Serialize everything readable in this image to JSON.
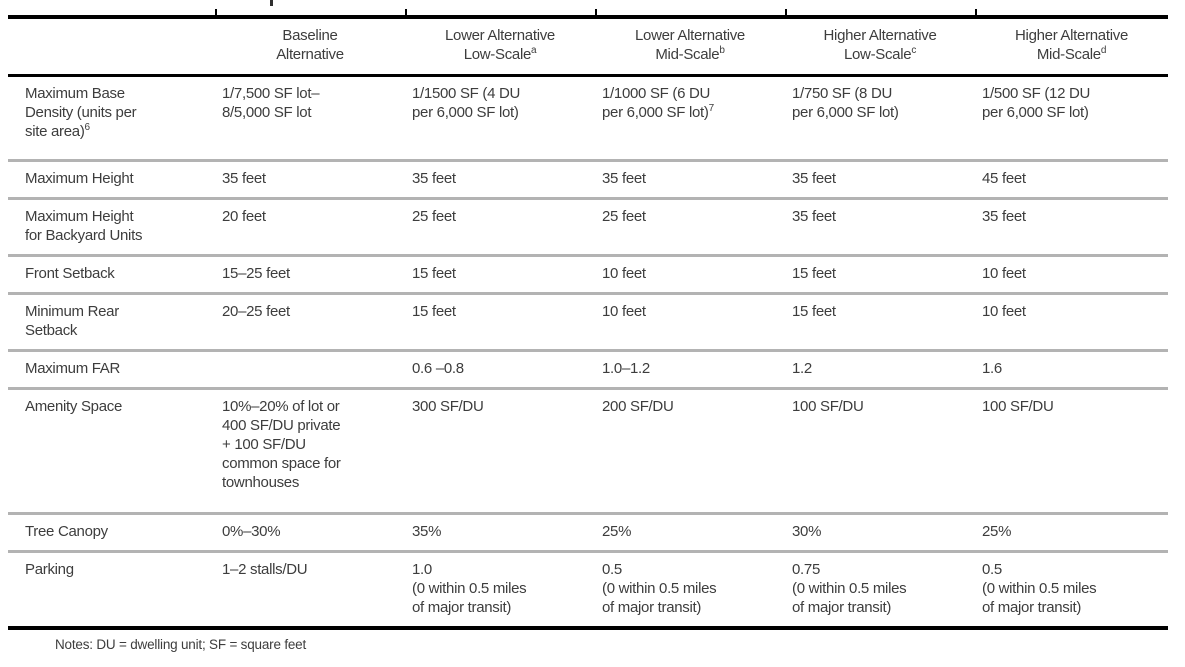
{
  "colors": {
    "background": "#ffffff",
    "text": "#3d3d3d",
    "rule_black": "#000000",
    "rule_gray": "#b3b3b3"
  },
  "table": {
    "columns": [
      {
        "lines": [],
        "sup": ""
      },
      {
        "lines": [
          "Baseline",
          "Alternative"
        ],
        "sup": ""
      },
      {
        "lines": [
          "Lower Alternative",
          "Low-Scale"
        ],
        "sup": "a"
      },
      {
        "lines": [
          "Lower Alternative",
          "Mid-Scale"
        ],
        "sup": "b"
      },
      {
        "lines": [
          "Higher Alternative",
          "Low-Scale"
        ],
        "sup": "c"
      },
      {
        "lines": [
          "Higher Alternative",
          "Mid-Scale"
        ],
        "sup": "d"
      }
    ],
    "rows": [
      {
        "label": {
          "lines": [
            "Maximum Base",
            "Density (units per",
            "site area)"
          ],
          "sup": "6"
        },
        "cells": [
          {
            "lines": [
              "1/7,500 SF lot–",
              "8/5,000 SF lot"
            ]
          },
          {
            "lines": [
              "1/1500 SF (4 DU",
              "per 6,000 SF lot)"
            ]
          },
          {
            "lines": [
              "1/1000 SF (6 DU",
              "per 6,000 SF lot)"
            ],
            "sup": "7"
          },
          {
            "lines": [
              "1/750 SF (8 DU",
              "per 6,000 SF lot)"
            ]
          },
          {
            "lines": [
              "1/500 SF (12 DU",
              "per 6,000 SF lot)"
            ]
          }
        ]
      },
      {
        "label": {
          "lines": [
            "Maximum Height"
          ]
        },
        "cells": [
          {
            "lines": [
              "35 feet"
            ]
          },
          {
            "lines": [
              "35 feet"
            ]
          },
          {
            "lines": [
              "35 feet"
            ]
          },
          {
            "lines": [
              "35 feet"
            ]
          },
          {
            "lines": [
              "45 feet"
            ]
          }
        ]
      },
      {
        "label": {
          "lines": [
            "Maximum Height",
            "for Backyard Units"
          ]
        },
        "cells": [
          {
            "lines": [
              "20 feet"
            ]
          },
          {
            "lines": [
              "25 feet"
            ]
          },
          {
            "lines": [
              "25 feet"
            ]
          },
          {
            "lines": [
              "35 feet"
            ]
          },
          {
            "lines": [
              "35 feet"
            ]
          }
        ]
      },
      {
        "label": {
          "lines": [
            "Front Setback"
          ]
        },
        "cells": [
          {
            "lines": [
              "15–25 feet"
            ]
          },
          {
            "lines": [
              "15 feet"
            ]
          },
          {
            "lines": [
              "10 feet"
            ]
          },
          {
            "lines": [
              "15 feet"
            ]
          },
          {
            "lines": [
              "10 feet"
            ]
          }
        ]
      },
      {
        "label": {
          "lines": [
            "Minimum Rear",
            "Setback"
          ]
        },
        "cells": [
          {
            "lines": [
              "20–25 feet"
            ]
          },
          {
            "lines": [
              "15 feet"
            ]
          },
          {
            "lines": [
              "10 feet"
            ]
          },
          {
            "lines": [
              "15 feet"
            ]
          },
          {
            "lines": [
              "10 feet"
            ]
          }
        ]
      },
      {
        "label": {
          "lines": [
            "Maximum FAR"
          ]
        },
        "cells": [
          {
            "lines": []
          },
          {
            "lines": [
              "0.6 –0.8"
            ]
          },
          {
            "lines": [
              "1.0–1.2"
            ]
          },
          {
            "lines": [
              "1.2"
            ]
          },
          {
            "lines": [
              "1.6"
            ]
          }
        ]
      },
      {
        "label": {
          "lines": [
            "Amenity Space"
          ]
        },
        "cells": [
          {
            "lines": [
              "10%–20% of lot or",
              "400 SF/DU private",
              "+ 100 SF/DU",
              "common space for",
              "townhouses"
            ]
          },
          {
            "lines": [
              "300 SF/DU"
            ]
          },
          {
            "lines": [
              "200 SF/DU"
            ]
          },
          {
            "lines": [
              "100 SF/DU"
            ]
          },
          {
            "lines": [
              "100 SF/DU"
            ]
          }
        ]
      },
      {
        "label": {
          "lines": [
            "Tree Canopy"
          ]
        },
        "cells": [
          {
            "lines": [
              "0%–30%"
            ]
          },
          {
            "lines": [
              "35%"
            ]
          },
          {
            "lines": [
              "25%"
            ]
          },
          {
            "lines": [
              "30%"
            ]
          },
          {
            "lines": [
              "25%"
            ]
          }
        ]
      },
      {
        "label": {
          "lines": [
            "Parking"
          ]
        },
        "cells": [
          {
            "lines": [
              "1–2 stalls/DU"
            ]
          },
          {
            "lines": [
              "1.0",
              "(0 within 0.5 miles",
              "of major transit)"
            ]
          },
          {
            "lines": [
              "0.5",
              "(0 within 0.5 miles",
              "of major transit)"
            ]
          },
          {
            "lines": [
              "0.75",
              "(0 within 0.5 miles",
              "of major transit)"
            ]
          },
          {
            "lines": [
              "0.5",
              "(0 within 0.5 miles",
              "of major transit)"
            ]
          }
        ]
      }
    ]
  },
  "notes": "Notes: DU = dwelling unit; SF = square feet"
}
